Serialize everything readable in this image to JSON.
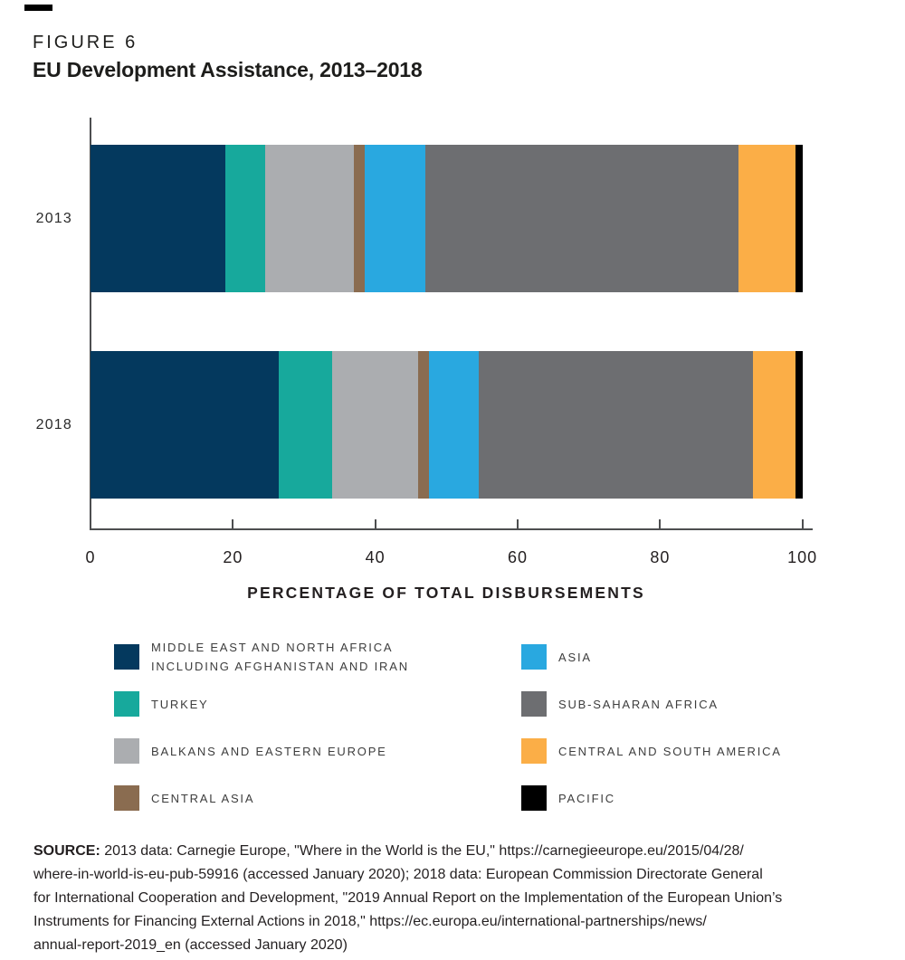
{
  "figure_label": "FIGURE 6",
  "title": "EU Development Assistance, 2013–2018",
  "chart_data": {
    "type": "bar",
    "subtype": "horizontal-stacked",
    "categories": [
      "2013",
      "2018"
    ],
    "series": [
      {
        "name": "Middle East and North Africa including Afghanistan and Iran",
        "legend_lines": [
          "MIDDLE EAST AND NORTH AFRICA",
          "INCLUDING AFGHANISTAN AND IRAN"
        ],
        "color": "#04395e",
        "values": [
          19,
          26.5
        ]
      },
      {
        "name": "Turkey",
        "legend_lines": [
          "TURKEY"
        ],
        "color": "#17a99c",
        "values": [
          5.5,
          7.5
        ]
      },
      {
        "name": "Balkans and Eastern Europe",
        "legend_lines": [
          "BALKANS AND EASTERN EUROPE"
        ],
        "color": "#abadb0",
        "values": [
          12.5,
          12
        ]
      },
      {
        "name": "Central Asia",
        "legend_lines": [
          "CENTRAL ASIA"
        ],
        "color": "#8a6c50",
        "values": [
          1.5,
          1.5
        ]
      },
      {
        "name": "Asia",
        "legend_lines": [
          "ASIA"
        ],
        "color": "#29a8e0",
        "values": [
          8.5,
          7
        ]
      },
      {
        "name": "Sub-Saharan Africa",
        "legend_lines": [
          "SUB-SAHARAN AFRICA"
        ],
        "color": "#6d6e71",
        "values": [
          44,
          38.5
        ]
      },
      {
        "name": "Central and South America",
        "legend_lines": [
          "CENTRAL AND SOUTH AMERICA"
        ],
        "color": "#fbae47",
        "values": [
          8,
          6
        ]
      },
      {
        "name": "Pacific",
        "legend_lines": [
          "PACIFIC"
        ],
        "color": "#000000",
        "values": [
          1,
          1
        ]
      }
    ],
    "xlabel": "PERCENTAGE OF TOTAL DISBURSEMENTS",
    "xlim": [
      0,
      100
    ],
    "xticks": [
      0,
      20,
      40,
      60,
      80,
      100
    ],
    "legend_columns": [
      [
        0,
        1,
        2,
        3
      ],
      [
        4,
        5,
        6,
        7
      ]
    ],
    "grid": false,
    "legend_position": "bottom"
  },
  "source": {
    "label": "SOURCE:",
    "lines": [
      "2013 data: Carnegie Europe, \"Where in the World is the EU,\" https://carnegieeurope.eu/2015/04/28/",
      "where-in-world-is-eu-pub-59916 (accessed January 2020); 2018 data: European Commission Directorate General",
      "for International Cooperation and Development, \"2019 Annual Report on the Implementation of the European Union’s",
      "Instruments for Financing External Actions in 2018,\" https://ec.europa.eu/international-partnerships/news/",
      "annual-report-2019_en (accessed January 2020)"
    ]
  }
}
